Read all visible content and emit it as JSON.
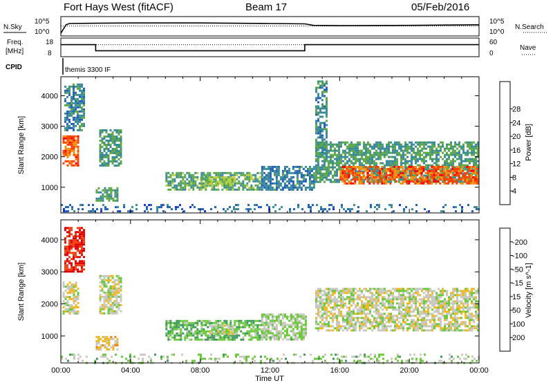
{
  "header": {
    "station": "Fort Hays West (fitACF)",
    "beam": "Beam 17",
    "date": "05/Feb/2016"
  },
  "strip_labels": {
    "nsky": "N.Sky",
    "nsearch": "N.Search",
    "freq_line1": "Freq.",
    "freq_line2": "[MHz]",
    "nave": "Nave",
    "cpid": "CPID",
    "cpid_value": "themis 3300 IF",
    "noise_ticks_left": [
      "10^5",
      "10^0"
    ],
    "noise_ticks_right": [
      "10^5",
      "10^0"
    ],
    "freq_ticks": [
      "18",
      "8"
    ],
    "nave_ticks": [
      "60",
      "0"
    ]
  },
  "axes": {
    "xlabel": "Time UT",
    "ylabel": "Slant Range [km]",
    "xticks": [
      "00:00",
      "04:00",
      "08:00",
      "12:00",
      "16:00",
      "20:00",
      "00:00"
    ],
    "yticks": [
      "1000",
      "2000",
      "3000",
      "4000"
    ]
  },
  "power_bar": {
    "title": "Power [dB]",
    "ticks": [
      "4",
      "8",
      "12",
      "16",
      "20",
      "24",
      "28"
    ],
    "colors": [
      "#1530e0",
      "#2060b8",
      "#3a8a9a",
      "#5aa84a",
      "#b8d040",
      "#f0c020",
      "#f09010",
      "#ff4000",
      "#ff0000"
    ]
  },
  "velocity_bar": {
    "title": "Velocity [m s^-1]",
    "ticks": [
      "200",
      "100",
      "50",
      "15",
      "-15",
      "-50",
      "-100",
      "-200"
    ],
    "colors": [
      "#1a30c0",
      "#2a6a9a",
      "#3a9a5a",
      "#6ac83a",
      "#c8c8c0",
      "#f0b820",
      "#f08010",
      "#f04010",
      "#e00000"
    ]
  },
  "chart_data": [
    {
      "type": "line",
      "panel": "noise",
      "series": [
        {
          "name": "N.Sky",
          "x": [
            0,
            0.3,
            0.5,
            2,
            4,
            8,
            12,
            14,
            14.5,
            16,
            20,
            24
          ],
          "y": [
            0.2,
            3.0,
            3.4,
            3.5,
            3.6,
            3.6,
            3.4,
            3.3,
            2.8,
            2.7,
            2.8,
            3.0
          ]
        },
        {
          "name": "N.Search",
          "x": [
            0,
            24
          ],
          "y": [
            2.6,
            2.6
          ]
        }
      ]
    },
    {
      "type": "line",
      "panel": "frequency",
      "series": [
        {
          "name": "Freq.",
          "x": [
            0,
            2,
            2,
            14,
            14,
            24
          ],
          "y": [
            15,
            15,
            11,
            11,
            15,
            15
          ]
        },
        {
          "name": "Nave",
          "x": [
            0,
            24
          ],
          "y": [
            15,
            15
          ]
        }
      ]
    },
    {
      "type": "heatmap",
      "panel": "power",
      "title": "Power [dB]",
      "xlabel": "Time UT",
      "ylabel": "Slant Range [km]",
      "xlim": [
        0,
        24
      ],
      "ylim": [
        180,
        4600
      ],
      "zlim": [
        0,
        30
      ],
      "regions": [
        {
          "x": [
            0.1,
            1.0
          ],
          "y": [
            1700,
            2700
          ],
          "z": 24
        },
        {
          "x": [
            0.2,
            1.3
          ],
          "y": [
            2900,
            4400
          ],
          "z": 8
        },
        {
          "x": [
            2.0,
            3.2
          ],
          "y": [
            550,
            1000
          ],
          "z": 10
        },
        {
          "x": [
            2.2,
            3.4
          ],
          "y": [
            1700,
            2900
          ],
          "z": 10
        },
        {
          "x": [
            6.0,
            11.5
          ],
          "y": [
            900,
            1500
          ],
          "z": 11
        },
        {
          "x": [
            8.0,
            10.0
          ],
          "y": [
            1050,
            1350
          ],
          "z": 14
        },
        {
          "x": [
            11.5,
            14.5
          ],
          "y": [
            900,
            1700
          ],
          "z": 7
        },
        {
          "x": [
            14.6,
            15.2
          ],
          "y": [
            2000,
            4500
          ],
          "z": 8
        },
        {
          "x": [
            14.6,
            23.9
          ],
          "y": [
            1200,
            2500
          ],
          "z": 10
        },
        {
          "x": [
            16.0,
            23.9
          ],
          "y": [
            1150,
            1700
          ],
          "z": 24
        },
        {
          "x": [
            0,
            24
          ],
          "y": [
            180,
            450
          ],
          "z": 6
        }
      ]
    },
    {
      "type": "heatmap",
      "panel": "velocity",
      "title": "Velocity [m s^-1]",
      "xlabel": "Time UT",
      "ylabel": "Slant Range [km]",
      "xlim": [
        0,
        24
      ],
      "ylim": [
        180,
        4600
      ],
      "zlim": [
        -250,
        250
      ],
      "regions": [
        {
          "x": [
            0.1,
            1.0
          ],
          "y": [
            1700,
            2700
          ],
          "z": 0
        },
        {
          "x": [
            0.2,
            1.3
          ],
          "y": [
            3000,
            4400
          ],
          "z": 200
        },
        {
          "x": [
            2.0,
            3.2
          ],
          "y": [
            550,
            1000
          ],
          "z": 40
        },
        {
          "x": [
            2.2,
            3.4
          ],
          "y": [
            1700,
            2900
          ],
          "z": 0
        },
        {
          "x": [
            6.0,
            11.5
          ],
          "y": [
            900,
            1500
          ],
          "z": -70
        },
        {
          "x": [
            8.5,
            10.0
          ],
          "y": [
            1050,
            1350
          ],
          "z": 0
        },
        {
          "x": [
            11.5,
            14.0
          ],
          "y": [
            900,
            1700
          ],
          "z": -30
        },
        {
          "x": [
            14.6,
            23.9
          ],
          "y": [
            1200,
            2500
          ],
          "z": 0
        },
        {
          "x": [
            0,
            24
          ],
          "y": [
            180,
            450
          ],
          "z": -40
        }
      ]
    }
  ]
}
